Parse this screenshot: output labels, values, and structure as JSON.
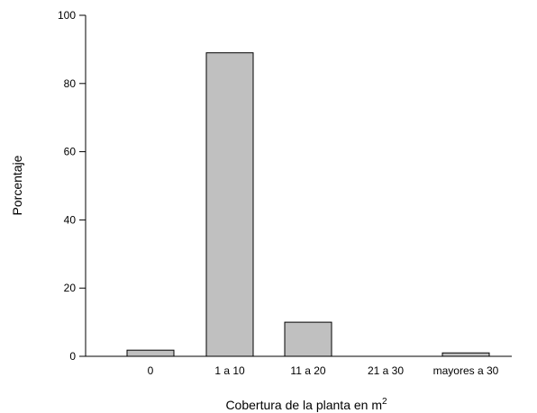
{
  "chart_data": {
    "type": "bar",
    "title": "",
    "xlabel": "Cobertura de la planta en m",
    "xlabel_superscript": "2",
    "ylabel": "Porcentaje",
    "categories": [
      "0",
      "1 a 10",
      "11 a 20",
      "21 a 30",
      "mayores a 30"
    ],
    "values": [
      1.8,
      89,
      10,
      0,
      1
    ],
    "ylim": [
      0,
      100
    ],
    "yticks": [
      "0",
      "20",
      "40",
      "60",
      "80",
      "100"
    ],
    "grid": false,
    "bar_color": "#c0c0c0",
    "bar_edge_color": "#000000"
  }
}
